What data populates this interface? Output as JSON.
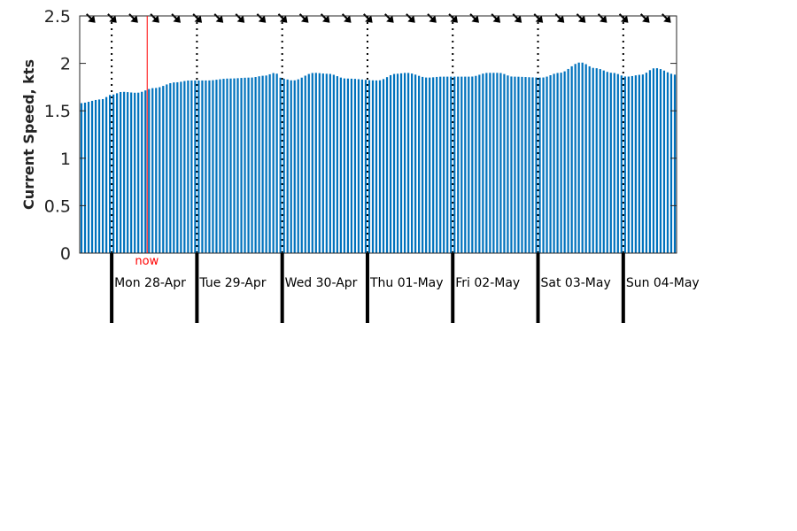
{
  "chart_data": {
    "type": "bar",
    "ylabel": "Current Speed, kts",
    "ylim": [
      0,
      2.5
    ],
    "yticks": [
      0,
      0.5,
      1,
      1.5,
      2,
      2.5
    ],
    "ytick_labels": [
      "0",
      "0.5",
      "1",
      "1.5",
      "2",
      "2.5"
    ],
    "x_start": "Mon 28-Apr 00:00 minus 9h",
    "x_hours_total": 168,
    "bar_color": "#0072bd",
    "now": {
      "label": "now",
      "hour": 19,
      "color": "#ff0000"
    },
    "days": [
      {
        "label": "Mon 28-Apr",
        "hour": 9
      },
      {
        "label": "Tue 29-Apr",
        "hour": 33
      },
      {
        "label": "Wed 30-Apr",
        "hour": 57
      },
      {
        "label": "Thu 01-May",
        "hour": 81
      },
      {
        "label": "Fri 02-May",
        "hour": 105
      },
      {
        "label": "Sat 03-May",
        "hour": 129
      },
      {
        "label": "Sun 04-May",
        "hour": 153
      }
    ],
    "keypoints": [
      [
        0,
        1.58
      ],
      [
        6,
        1.62
      ],
      [
        9,
        1.67
      ],
      [
        12,
        1.7
      ],
      [
        16,
        1.69
      ],
      [
        21,
        1.74
      ],
      [
        27,
        1.8
      ],
      [
        31,
        1.82
      ],
      [
        36,
        1.82
      ],
      [
        42,
        1.84
      ],
      [
        48,
        1.85
      ],
      [
        52,
        1.87
      ],
      [
        55,
        1.9
      ],
      [
        57,
        1.84
      ],
      [
        60,
        1.82
      ],
      [
        66,
        1.9
      ],
      [
        70,
        1.89
      ],
      [
        75,
        1.84
      ],
      [
        84,
        1.82
      ],
      [
        89,
        1.89
      ],
      [
        92,
        1.9
      ],
      [
        98,
        1.85
      ],
      [
        102,
        1.86
      ],
      [
        110,
        1.86
      ],
      [
        115,
        1.9
      ],
      [
        118,
        1.9
      ],
      [
        122,
        1.86
      ],
      [
        130,
        1.85
      ],
      [
        135,
        1.9
      ],
      [
        141,
        2.01
      ],
      [
        145,
        1.95
      ],
      [
        150,
        1.9
      ],
      [
        154,
        1.86
      ],
      [
        158,
        1.88
      ],
      [
        162,
        1.95
      ],
      [
        168,
        1.88
      ]
    ],
    "wind_arrows": {
      "count": 28,
      "y_value": 2.48
    }
  }
}
